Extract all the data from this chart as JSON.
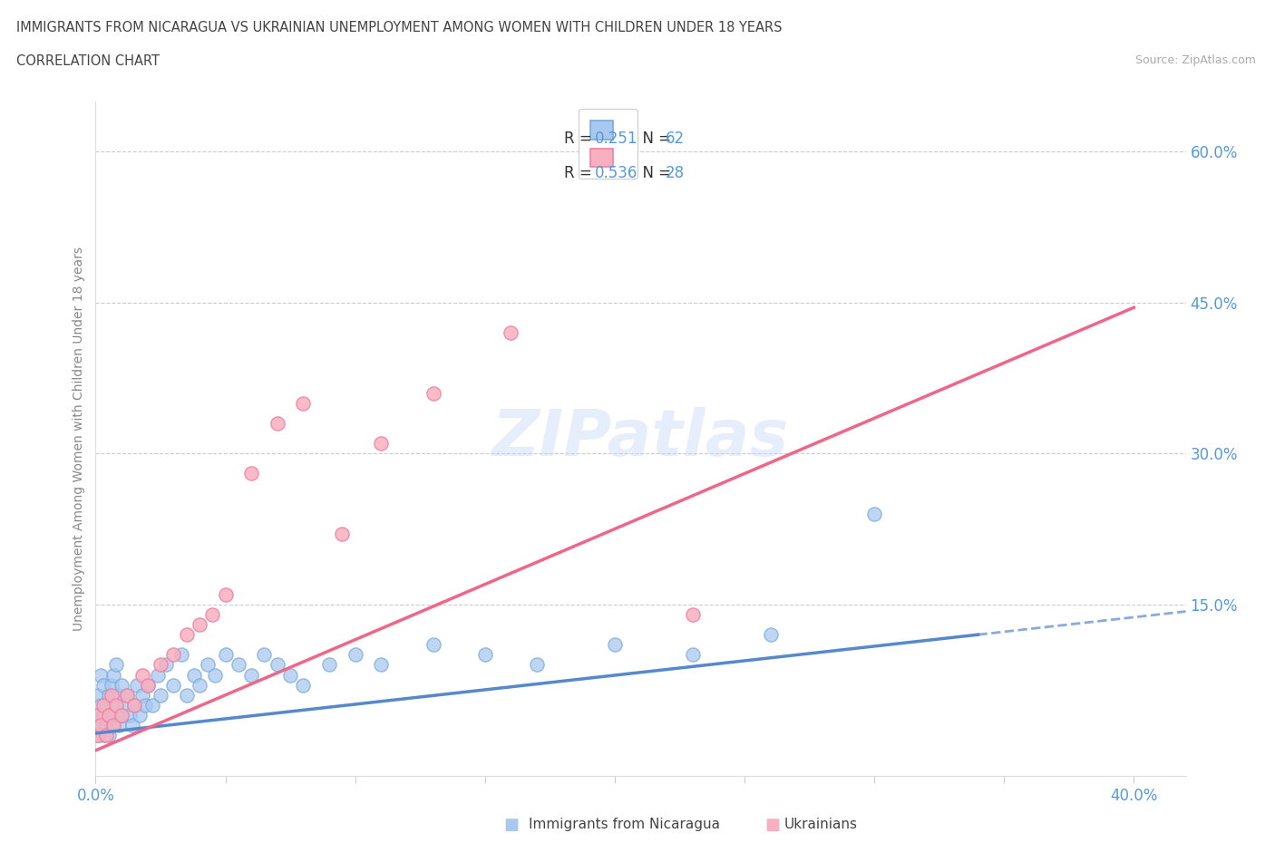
{
  "title": "IMMIGRANTS FROM NICARAGUA VS UKRAINIAN UNEMPLOYMENT AMONG WOMEN WITH CHILDREN UNDER 18 YEARS",
  "subtitle": "CORRELATION CHART",
  "source": "Source: ZipAtlas.com",
  "ylabel": "Unemployment Among Women with Children Under 18 years",
  "xlim": [
    0.0,
    0.42
  ],
  "ylim": [
    -0.02,
    0.65
  ],
  "xticks": [
    0.0,
    0.05,
    0.1,
    0.15,
    0.2,
    0.25,
    0.3,
    0.35,
    0.4
  ],
  "yticks_right": [
    0.15,
    0.3,
    0.45,
    0.6
  ],
  "ytick_labels_right": [
    "15.0%",
    "30.0%",
    "45.0%",
    "60.0%"
  ],
  "blue_color": "#a8c8f0",
  "pink_color": "#f8b0c0",
  "blue_edge": "#7aaad8",
  "pink_edge": "#f080a0",
  "blue_line_color": "#5588cc",
  "pink_line_color": "#ee6688",
  "title_color": "#444444",
  "axis_label_color": "#888888",
  "tick_label_color": "#5599dd",
  "source_color": "#aaaaaa",
  "legend_text_color": "#333333",
  "legend_val_color": "#5599dd",
  "nicaragua_scatter_x": [
    0.001,
    0.001,
    0.001,
    0.002,
    0.002,
    0.002,
    0.003,
    0.003,
    0.003,
    0.004,
    0.004,
    0.005,
    0.005,
    0.005,
    0.006,
    0.006,
    0.007,
    0.007,
    0.008,
    0.008,
    0.009,
    0.009,
    0.01,
    0.01,
    0.011,
    0.012,
    0.013,
    0.014,
    0.015,
    0.016,
    0.017,
    0.018,
    0.019,
    0.02,
    0.022,
    0.024,
    0.025,
    0.027,
    0.03,
    0.033,
    0.035,
    0.038,
    0.04,
    0.043,
    0.046,
    0.05,
    0.055,
    0.06,
    0.065,
    0.07,
    0.075,
    0.08,
    0.09,
    0.1,
    0.11,
    0.13,
    0.15,
    0.17,
    0.2,
    0.23,
    0.26,
    0.3
  ],
  "nicaragua_scatter_y": [
    0.02,
    0.04,
    0.06,
    0.03,
    0.05,
    0.08,
    0.02,
    0.04,
    0.07,
    0.03,
    0.05,
    0.02,
    0.04,
    0.06,
    0.03,
    0.07,
    0.04,
    0.08,
    0.05,
    0.09,
    0.03,
    0.06,
    0.04,
    0.07,
    0.05,
    0.06,
    0.04,
    0.03,
    0.05,
    0.07,
    0.04,
    0.06,
    0.05,
    0.07,
    0.05,
    0.08,
    0.06,
    0.09,
    0.07,
    0.1,
    0.06,
    0.08,
    0.07,
    0.09,
    0.08,
    0.1,
    0.09,
    0.08,
    0.1,
    0.09,
    0.08,
    0.07,
    0.09,
    0.1,
    0.09,
    0.11,
    0.1,
    0.09,
    0.11,
    0.1,
    0.12,
    0.24
  ],
  "ukrainian_scatter_x": [
    0.001,
    0.001,
    0.002,
    0.003,
    0.004,
    0.005,
    0.006,
    0.007,
    0.008,
    0.01,
    0.012,
    0.015,
    0.018,
    0.02,
    0.025,
    0.03,
    0.035,
    0.04,
    0.045,
    0.05,
    0.06,
    0.07,
    0.08,
    0.095,
    0.11,
    0.13,
    0.16,
    0.23
  ],
  "ukrainian_scatter_y": [
    0.02,
    0.04,
    0.03,
    0.05,
    0.02,
    0.04,
    0.06,
    0.03,
    0.05,
    0.04,
    0.06,
    0.05,
    0.08,
    0.07,
    0.09,
    0.1,
    0.12,
    0.13,
    0.14,
    0.16,
    0.28,
    0.33,
    0.35,
    0.22,
    0.31,
    0.36,
    0.42,
    0.14
  ],
  "nic_trend_x0": 0.0,
  "nic_trend_y0": 0.022,
  "nic_trend_x1": 0.34,
  "nic_trend_y1": 0.12,
  "ukr_trend_x0": 0.0,
  "ukr_trend_y0": 0.005,
  "ukr_trend_x1": 0.4,
  "ukr_trend_y1": 0.445
}
